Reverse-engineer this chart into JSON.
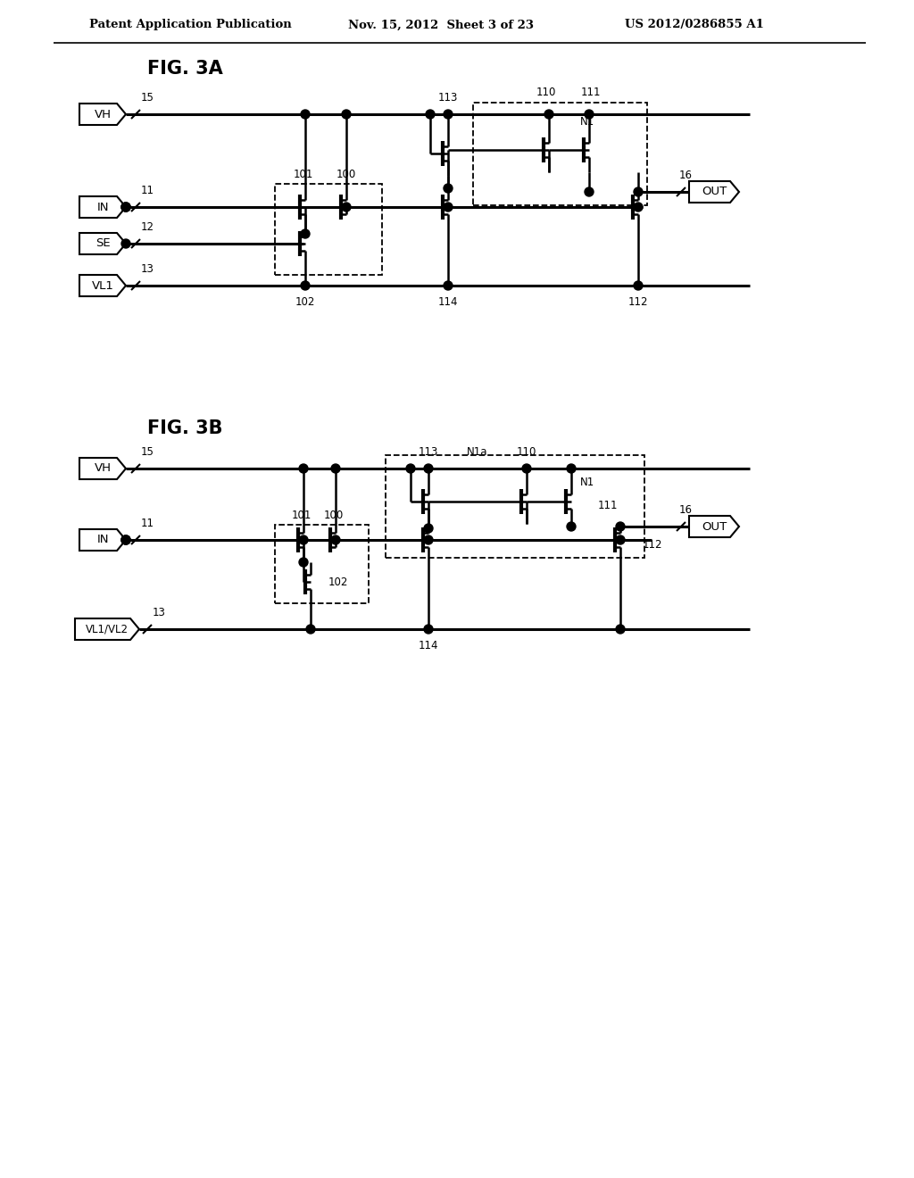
{
  "bg": "#ffffff",
  "fig3a_label": "FIG. 3A",
  "fig3b_label": "FIG. 3B",
  "header_left": "Patent Application Publication",
  "header_mid": "Nov. 15, 2012  Sheet 3 of 23",
  "header_right": "US 2012/0286855 A1"
}
